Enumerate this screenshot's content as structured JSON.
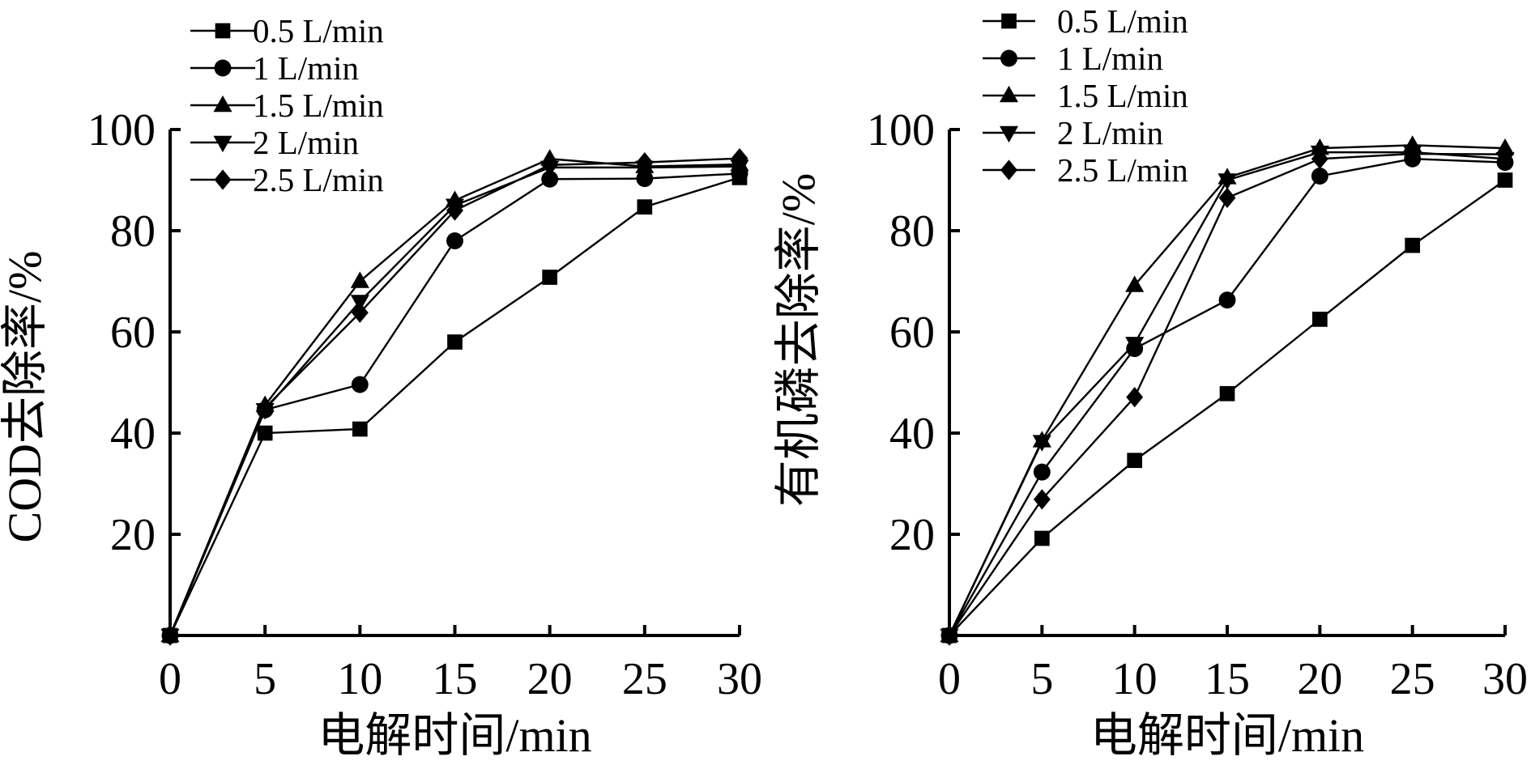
{
  "chart_data": [
    {
      "type": "line",
      "xlabel": "电解时间/min",
      "ylabel": "COD去除率/%",
      "xlim": [
        0,
        30
      ],
      "ylim": [
        0,
        100
      ],
      "x_ticks": [
        "0",
        "5",
        "10",
        "15",
        "20",
        "25",
        "30"
      ],
      "y_ticks": [
        "20",
        "40",
        "60",
        "80",
        "100"
      ],
      "legend_position": "top-left",
      "grid": false,
      "x": [
        0,
        5,
        10,
        15,
        20,
        25,
        30
      ],
      "series": [
        {
          "name": "0.5 L/min",
          "marker": "square",
          "values": [
            0,
            40,
            40.8,
            58,
            70.8,
            84.7,
            90.5
          ]
        },
        {
          "name": "1 L/min",
          "marker": "circle",
          "values": [
            0,
            44.6,
            49.6,
            78,
            90.2,
            90.3,
            91.3
          ]
        },
        {
          "name": "1.5 L/min",
          "marker": "triangle-up",
          "values": [
            0,
            45.5,
            70,
            86,
            94.2,
            92.7,
            93.1
          ]
        },
        {
          "name": "2 L/min",
          "marker": "triangle-down",
          "values": [
            0,
            44.6,
            66,
            85,
            92.5,
            92.5,
            92.7
          ]
        },
        {
          "name": "2.5 L/min",
          "marker": "diamond",
          "values": [
            0,
            45,
            63.8,
            84,
            93,
            93.5,
            94.3
          ]
        }
      ]
    },
    {
      "type": "line",
      "xlabel": "电解时间/min",
      "ylabel": "有机磷去除率/%",
      "xlim": [
        0,
        30
      ],
      "ylim": [
        0,
        100
      ],
      "x_ticks": [
        "0",
        "5",
        "10",
        "15",
        "20",
        "25",
        "30"
      ],
      "y_ticks": [
        "20",
        "40",
        "60",
        "80",
        "100"
      ],
      "legend_position": "top-left",
      "grid": false,
      "x": [
        0,
        5,
        10,
        15,
        20,
        25,
        30
      ],
      "series": [
        {
          "name": "0.5 L/min",
          "marker": "square",
          "values": [
            0,
            19.2,
            34.6,
            47.8,
            62.5,
            77.1,
            90
          ]
        },
        {
          "name": "1 L/min",
          "marker": "circle",
          "values": [
            0,
            32.3,
            56.7,
            66.3,
            90.8,
            94.2,
            93.5
          ]
        },
        {
          "name": "1.5 L/min",
          "marker": "triangle-up",
          "values": [
            0,
            38.5,
            69.2,
            90.5,
            96.3,
            96.9,
            96.3
          ]
        },
        {
          "name": "2 L/min",
          "marker": "triangle-down",
          "values": [
            0,
            38.3,
            57.7,
            90,
            95.5,
            95.5,
            94.2
          ]
        },
        {
          "name": "2.5 L/min",
          "marker": "diamond",
          "values": [
            0,
            26.9,
            47.1,
            86.5,
            94.2,
            95.2,
            95.1
          ]
        }
      ]
    }
  ]
}
